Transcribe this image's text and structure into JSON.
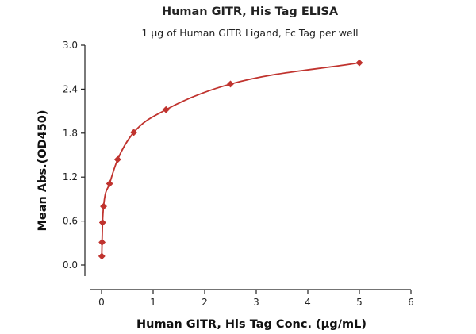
{
  "chart_data": {
    "type": "scatter",
    "title": "Human GITR, His Tag ELISA",
    "subtitle": "1 μg of Human GITR Ligand, Fc Tag per well",
    "xlabel": "Human GITR, His Tag Conc. (μg/mL)",
    "ylabel": "Mean Abs.(OD450)",
    "xlim": [
      0,
      6
    ],
    "ylim": [
      0,
      3.0
    ],
    "x_ticks": [
      "0",
      "1",
      "2",
      "3",
      "4",
      "5",
      "6"
    ],
    "y_ticks": [
      "0.0",
      "0.6",
      "1.2",
      "1.8",
      "2.4",
      "3.0"
    ],
    "grid": false,
    "series": [
      {
        "color": "#c0332e",
        "marker": "diamond",
        "fit": "curve",
        "points": [
          {
            "x": 0.0049,
            "y": 0.12
          },
          {
            "x": 0.0098,
            "y": 0.31
          },
          {
            "x": 0.0195,
            "y": 0.58
          },
          {
            "x": 0.039,
            "y": 0.8
          },
          {
            "x": 0.156,
            "y": 1.11
          },
          {
            "x": 0.3125,
            "y": 1.44
          },
          {
            "x": 0.625,
            "y": 1.81
          },
          {
            "x": 1.25,
            "y": 2.12
          },
          {
            "x": 2.5,
            "y": 2.47
          },
          {
            "x": 5.0,
            "y": 2.76
          }
        ]
      }
    ]
  }
}
